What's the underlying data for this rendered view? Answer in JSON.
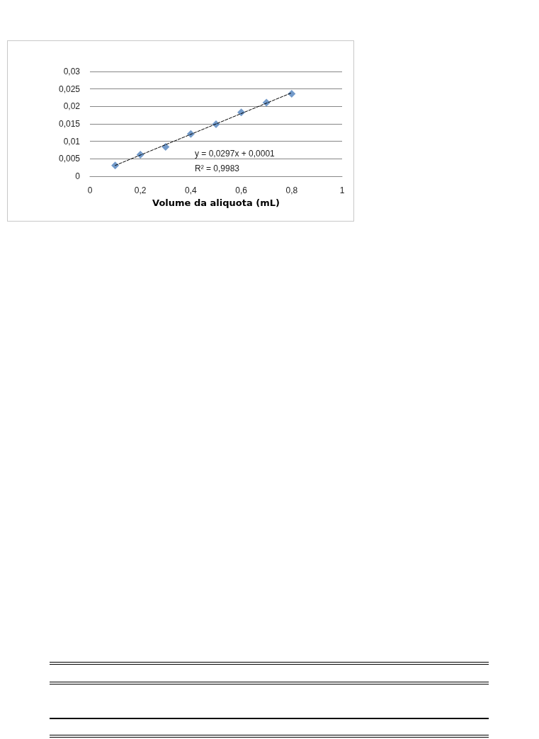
{
  "chart_data": {
    "type": "scatter",
    "xlabel": "Volume da aliquota (mL)",
    "xlim": [
      0,
      1
    ],
    "xticks": [
      0,
      {
        "value": 0.2,
        "label": "0,2"
      },
      {
        "value": 0.4,
        "label": "0,4"
      },
      {
        "value": 0.6,
        "label": "0,6"
      },
      {
        "value": 0.8,
        "label": "0,8"
      },
      1
    ],
    "ylim": [
      0,
      0.03
    ],
    "yticks": [
      0,
      {
        "value": 0.005,
        "label": "0,005"
      },
      {
        "value": 0.01,
        "label": "0,01"
      },
      {
        "value": 0.015,
        "label": "0,015"
      },
      {
        "value": 0.02,
        "label": "0,02"
      },
      {
        "value": 0.025,
        "label": "0,025"
      },
      {
        "value": 0.03,
        "label": "0,03"
      }
    ],
    "grid": "y",
    "marker": "diamond",
    "series": [
      {
        "color": "#4f81bd",
        "x": [
          0.1,
          0.2,
          0.3,
          0.4,
          0.5,
          0.6,
          0.7,
          0.8
        ],
        "values": [
          0.0031,
          0.0062,
          0.0084,
          0.0121,
          0.0149,
          0.0183,
          0.0211,
          0.0236
        ]
      },
      {
        "type": "line",
        "color": "#000000",
        "line_style": "dashed",
        "marker": "none",
        "x": [
          0.1,
          0.8
        ],
        "values": [
          0.0031,
          0.0239
        ]
      }
    ],
    "annotations": [
      "y = 0,0297x + 0,0001",
      "R² = 0,9983"
    ]
  }
}
